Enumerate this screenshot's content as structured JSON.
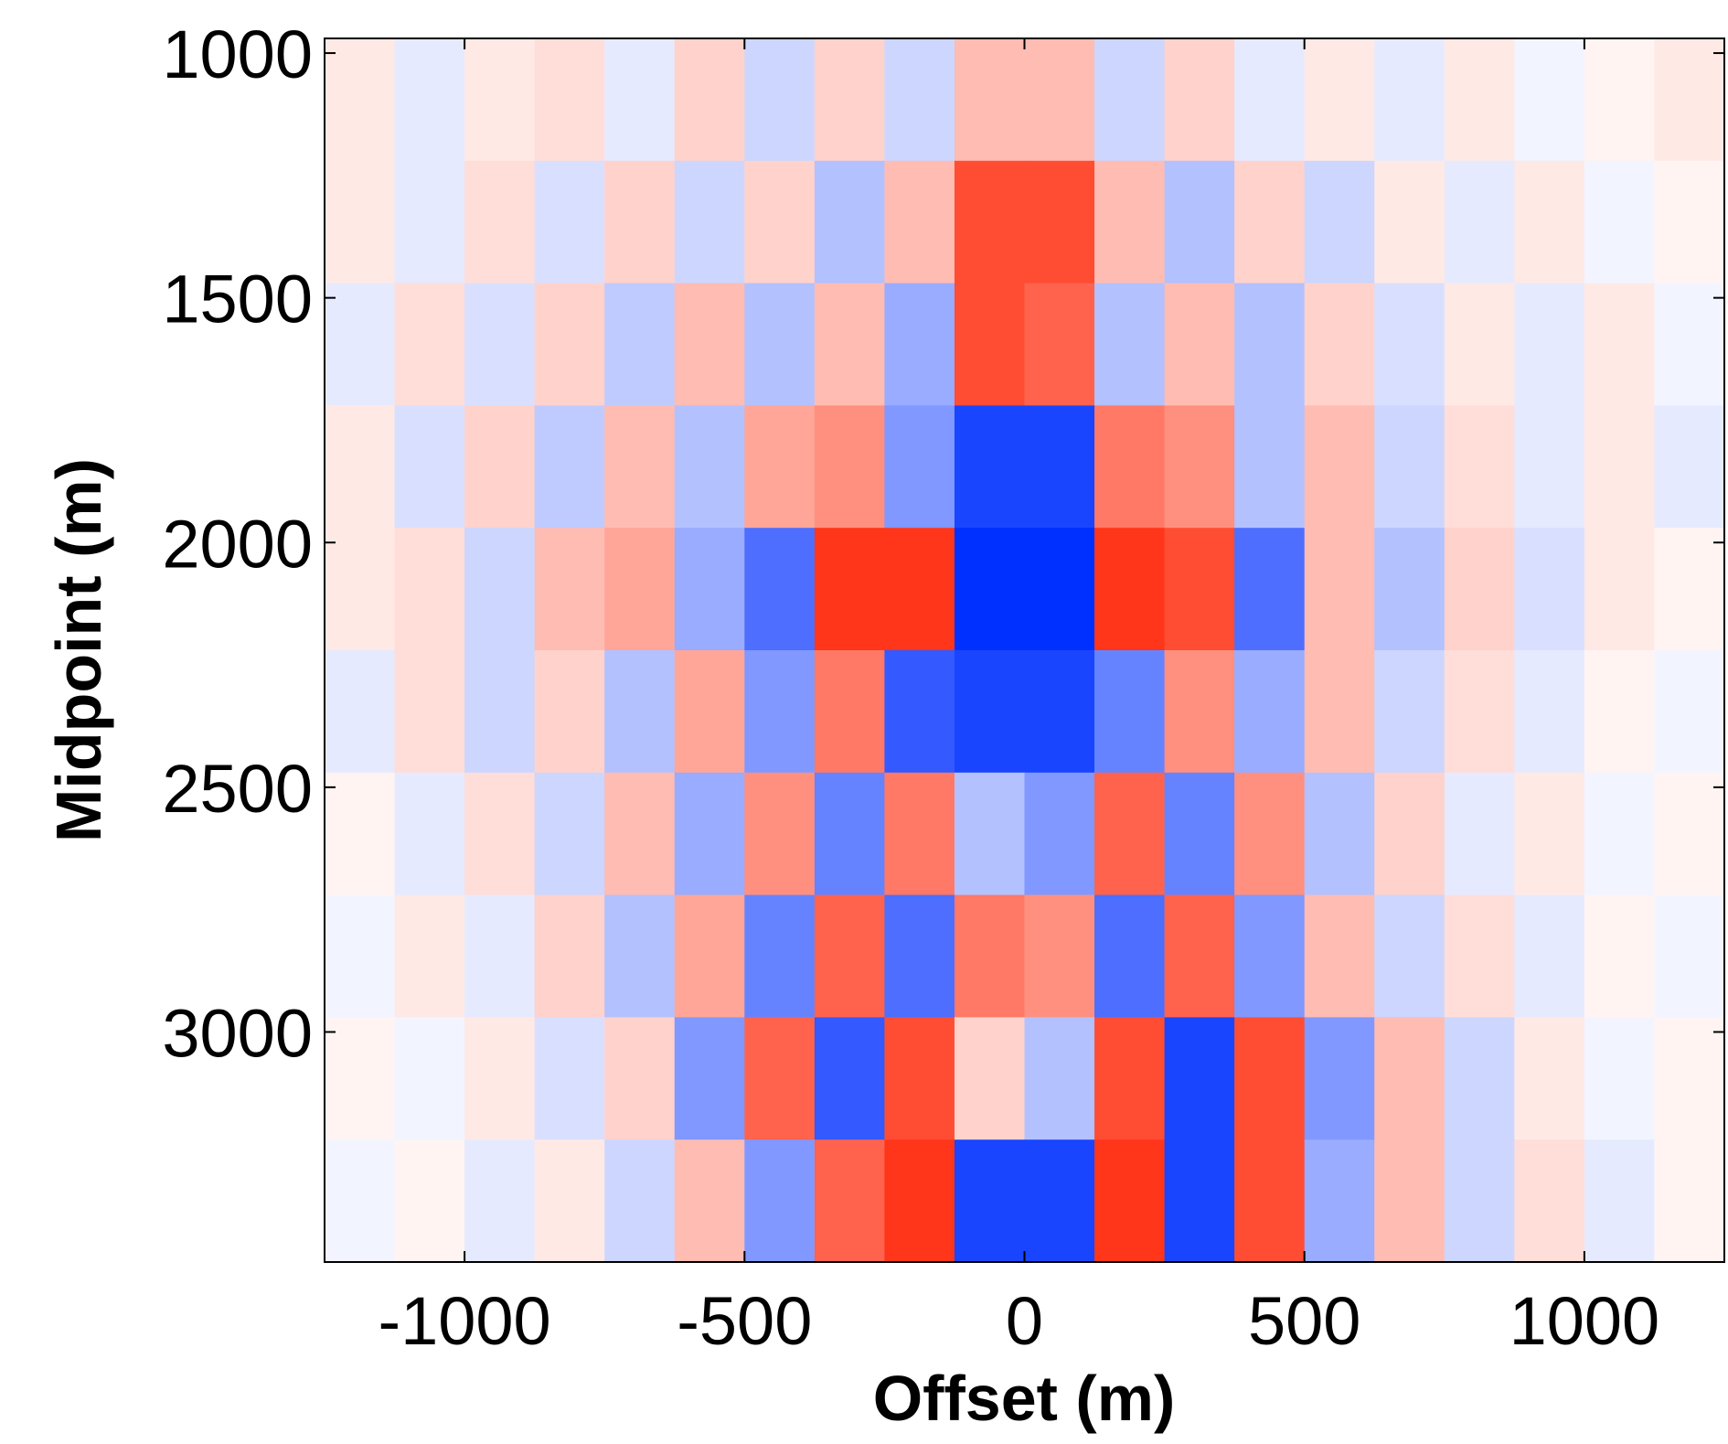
{
  "chart_data": {
    "type": "heatmap",
    "xlabel": "Offset (m)",
    "ylabel": "Midpoint (m)",
    "x": [
      -1187.5,
      -1062.5,
      -937.5,
      -812.5,
      -687.5,
      -562.5,
      -437.5,
      -312.5,
      -187.5,
      -62.5,
      62.5,
      187.5,
      312.5,
      437.5,
      562.5,
      687.5,
      812.5,
      937.5,
      1062.5,
      1187.5
    ],
    "y": [
      1095,
      1345,
      1595,
      1845,
      2095,
      2345,
      2595,
      2845,
      3095,
      3345
    ],
    "z": [
      [
        0.1,
        -0.1,
        0.1,
        0.15,
        -0.1,
        0.2,
        -0.2,
        0.2,
        -0.2,
        0.3,
        0.3,
        -0.2,
        0.2,
        -0.1,
        0.1,
        -0.1,
        0.1,
        -0.05,
        0.05,
        0.1
      ],
      [
        0.1,
        -0.1,
        0.15,
        -0.15,
        0.2,
        -0.2,
        0.2,
        -0.3,
        0.3,
        0.8,
        0.8,
        0.3,
        -0.3,
        0.2,
        -0.2,
        0.1,
        -0.1,
        0.1,
        -0.05,
        0.05
      ],
      [
        -0.1,
        0.15,
        -0.15,
        0.2,
        -0.25,
        0.3,
        -0.3,
        0.3,
        -0.4,
        0.8,
        0.7,
        -0.3,
        0.3,
        -0.3,
        0.2,
        -0.15,
        0.1,
        -0.1,
        0.1,
        -0.05
      ],
      [
        0.1,
        -0.15,
        0.2,
        -0.25,
        0.3,
        -0.3,
        0.4,
        0.5,
        -0.5,
        -0.9,
        -0.9,
        0.6,
        0.5,
        -0.3,
        0.3,
        -0.2,
        0.15,
        -0.1,
        0.1,
        -0.1
      ],
      [
        0.1,
        0.15,
        -0.2,
        0.3,
        0.4,
        -0.4,
        -0.7,
        0.9,
        0.9,
        -1,
        -1,
        0.9,
        0.8,
        -0.7,
        0.3,
        -0.3,
        0.2,
        -0.15,
        0.1,
        0.05
      ],
      [
        -0.1,
        0.15,
        -0.2,
        0.2,
        -0.3,
        0.4,
        -0.5,
        0.6,
        -0.8,
        -0.9,
        -0.9,
        -0.6,
        0.5,
        -0.4,
        0.3,
        -0.2,
        0.15,
        -0.1,
        0.05,
        -0.05
      ],
      [
        0.05,
        -0.1,
        0.15,
        -0.2,
        0.3,
        -0.4,
        0.5,
        -0.6,
        0.6,
        -0.3,
        -0.5,
        0.7,
        -0.6,
        0.5,
        -0.3,
        0.2,
        -0.1,
        0.1,
        -0.05,
        0.05
      ],
      [
        -0.05,
        0.1,
        -0.1,
        0.2,
        -0.3,
        0.4,
        -0.6,
        0.7,
        -0.7,
        0.6,
        0.5,
        -0.7,
        0.7,
        -0.5,
        0.3,
        -0.2,
        0.15,
        -0.1,
        0.05,
        -0.05
      ],
      [
        0.05,
        -0.05,
        0.1,
        -0.15,
        0.2,
        -0.5,
        0.7,
        -0.8,
        0.8,
        0.2,
        -0.3,
        0.8,
        -0.9,
        0.8,
        -0.5,
        0.3,
        -0.2,
        0.1,
        -0.05,
        0.05
      ],
      [
        -0.05,
        0.05,
        -0.1,
        0.1,
        -0.2,
        0.3,
        -0.5,
        0.7,
        0.9,
        -0.9,
        -0.9,
        0.9,
        -0.9,
        0.8,
        -0.4,
        0.3,
        -0.2,
        0.15,
        -0.1,
        0.05
      ]
    ],
    "cmap": [
      "#0030ff",
      "#ffffff",
      "#ff2000"
    ],
    "clim": [
      -1,
      1
    ],
    "xlim": [
      -1250,
      1250
    ],
    "ylim": [
      970,
      3470
    ],
    "y_inverted": true,
    "xticks": [
      -1000,
      -500,
      0,
      500,
      1000
    ],
    "yticks": [
      1000,
      1500,
      2000,
      2500,
      3000
    ]
  }
}
